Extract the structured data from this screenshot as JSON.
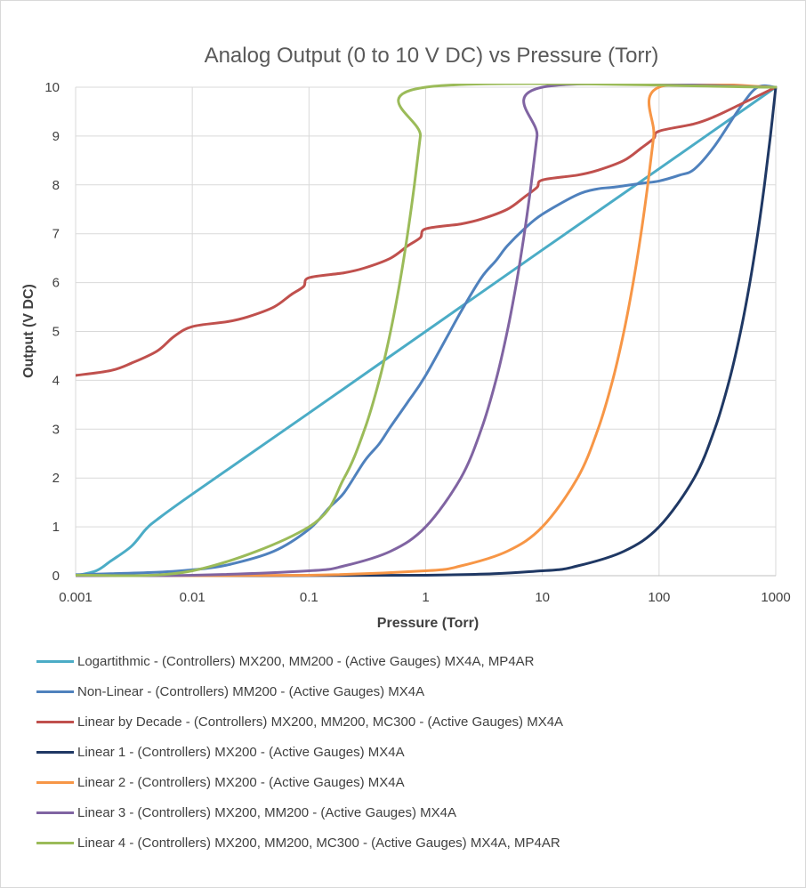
{
  "chart_data": {
    "type": "line",
    "title": "Analog Output (0 to 10 V DC) vs Pressure (Torr)",
    "xlabel": "Pressure (Torr)",
    "ylabel": "Output (V DC)",
    "xscale": "log",
    "xlim": [
      0.001,
      1000
    ],
    "ylim": [
      0,
      10
    ],
    "xticks": [
      "0.001",
      "0.01",
      "0.1",
      "1",
      "10",
      "100",
      "1000"
    ],
    "yticks": [
      "0",
      "1",
      "2",
      "3",
      "4",
      "5",
      "6",
      "7",
      "8",
      "9",
      "10"
    ],
    "grid": true,
    "legend_position": "bottom",
    "series": [
      {
        "name": "Logartithmic - (Controllers) MX200, MM200 - (Active Gauges) MX4A, MP4AR",
        "color": "#4bacc6",
        "points": [
          [
            0.001,
            0
          ],
          [
            0.0015,
            0.1
          ],
          [
            0.002,
            0.3
          ],
          [
            0.003,
            0.6
          ],
          [
            0.004,
            0.95
          ],
          [
            0.005,
            1.15
          ],
          [
            0.01,
            1.67
          ],
          [
            0.1,
            3.33
          ],
          [
            1,
            5
          ],
          [
            10,
            6.67
          ],
          [
            100,
            8.33
          ],
          [
            1000,
            10
          ]
        ]
      },
      {
        "name": "Non-Linear - (Controllers) MM200 - (Active Gauges) MX4A",
        "color": "#4f81bd",
        "points": [
          [
            0.001,
            0.02
          ],
          [
            0.002,
            0.04
          ],
          [
            0.005,
            0.07
          ],
          [
            0.01,
            0.12
          ],
          [
            0.02,
            0.22
          ],
          [
            0.05,
            0.5
          ],
          [
            0.1,
            0.95
          ],
          [
            0.15,
            1.4
          ],
          [
            0.2,
            1.7
          ],
          [
            0.3,
            2.35
          ],
          [
            0.4,
            2.7
          ],
          [
            0.5,
            3.05
          ],
          [
            0.7,
            3.55
          ],
          [
            1,
            4.1
          ],
          [
            2,
            5.4
          ],
          [
            3,
            6.1
          ],
          [
            4,
            6.45
          ],
          [
            5,
            6.75
          ],
          [
            7,
            7.1
          ],
          [
            10,
            7.4
          ],
          [
            20,
            7.8
          ],
          [
            30,
            7.92
          ],
          [
            40,
            7.95
          ],
          [
            70,
            8.03
          ],
          [
            100,
            8.08
          ],
          [
            150,
            8.2
          ],
          [
            200,
            8.32
          ],
          [
            300,
            8.8
          ],
          [
            500,
            9.6
          ],
          [
            700,
            10
          ],
          [
            1000,
            10
          ]
        ]
      },
      {
        "name": "Linear by Decade - (Controllers) MX200, MM200, MC300 - (Active Gauges) MX4A",
        "color": "#c0504d",
        "points": [
          [
            0.001,
            4.1
          ],
          [
            0.002,
            4.2
          ],
          [
            0.003,
            4.35
          ],
          [
            0.005,
            4.6
          ],
          [
            0.007,
            4.9
          ],
          [
            0.01,
            5.1
          ],
          [
            0.02,
            5.2
          ],
          [
            0.03,
            5.3
          ],
          [
            0.05,
            5.5
          ],
          [
            0.07,
            5.75
          ],
          [
            0.09,
            5.92
          ],
          [
            0.1,
            6.1
          ],
          [
            0.2,
            6.2
          ],
          [
            0.3,
            6.3
          ],
          [
            0.5,
            6.5
          ],
          [
            0.7,
            6.75
          ],
          [
            0.9,
            6.92
          ],
          [
            1,
            7.1
          ],
          [
            2,
            7.2
          ],
          [
            3,
            7.3
          ],
          [
            5,
            7.5
          ],
          [
            7,
            7.75
          ],
          [
            9,
            7.95
          ],
          [
            10,
            8.1
          ],
          [
            20,
            8.2
          ],
          [
            30,
            8.3
          ],
          [
            50,
            8.5
          ],
          [
            70,
            8.75
          ],
          [
            90,
            8.95
          ],
          [
            100,
            9.1
          ],
          [
            200,
            9.25
          ],
          [
            300,
            9.4
          ],
          [
            500,
            9.65
          ],
          [
            1000,
            10
          ]
        ]
      },
      {
        "name": "Linear 1 - (Controllers) MX200 - (Active Gauges) MX4A",
        "color": "#1f3864",
        "points": [
          [
            0.001,
            0
          ],
          [
            1,
            0.01
          ],
          [
            10,
            0.1
          ],
          [
            20,
            0.2
          ],
          [
            50,
            0.5
          ],
          [
            100,
            1
          ],
          [
            200,
            2
          ],
          [
            300,
            3
          ],
          [
            400,
            4
          ],
          [
            500,
            5
          ],
          [
            600,
            6
          ],
          [
            700,
            7
          ],
          [
            800,
            8
          ],
          [
            900,
            9
          ],
          [
            1000,
            10
          ]
        ]
      },
      {
        "name": "Linear 2 - (Controllers) MX200 - (Active Gauges) MX4A",
        "color": "#f79646",
        "points": [
          [
            0.001,
            0
          ],
          [
            0.1,
            0.01
          ],
          [
            1,
            0.1
          ],
          [
            2,
            0.2
          ],
          [
            5,
            0.5
          ],
          [
            10,
            1
          ],
          [
            20,
            2
          ],
          [
            30,
            3
          ],
          [
            40,
            4
          ],
          [
            50,
            5
          ],
          [
            60,
            6
          ],
          [
            70,
            7
          ],
          [
            80,
            8
          ],
          [
            90,
            9
          ],
          [
            100,
            10
          ],
          [
            1000,
            10
          ]
        ]
      },
      {
        "name": "Linear 3 - (Controllers) MX200, MM200 - (Active Gauges) MX4A",
        "color": "#8064a2",
        "points": [
          [
            0.001,
            0
          ],
          [
            0.01,
            0.01
          ],
          [
            0.1,
            0.1
          ],
          [
            0.2,
            0.2
          ],
          [
            0.5,
            0.5
          ],
          [
            1,
            1
          ],
          [
            2,
            2
          ],
          [
            3,
            3
          ],
          [
            4,
            4
          ],
          [
            5,
            5
          ],
          [
            6,
            6
          ],
          [
            7,
            7
          ],
          [
            8,
            8
          ],
          [
            9,
            9
          ],
          [
            10,
            10
          ],
          [
            1000,
            10
          ]
        ]
      },
      {
        "name": "Linear 4 - (Controllers) MX200, MM200, MC300 - (Active Gauges) MX4A, MP4AR",
        "color": "#9bbb59",
        "points": [
          [
            0.001,
            0.01
          ],
          [
            0.01,
            0.1
          ],
          [
            0.1,
            1
          ],
          [
            0.2,
            2
          ],
          [
            0.3,
            3
          ],
          [
            0.4,
            4
          ],
          [
            0.5,
            5
          ],
          [
            0.6,
            6
          ],
          [
            0.7,
            7
          ],
          [
            0.8,
            8
          ],
          [
            0.9,
            9
          ],
          [
            1,
            10
          ],
          [
            1000,
            10
          ]
        ]
      }
    ]
  }
}
